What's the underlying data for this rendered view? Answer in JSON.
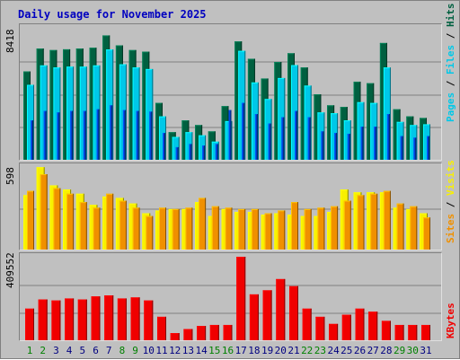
{
  "title": "Daily usage for November 2025",
  "colors": {
    "hits": "#006040",
    "files": "#00c8e8",
    "pages": "#0040c8",
    "visits": "#f8f000",
    "sites": "#f09000",
    "kbytes": "#f00000",
    "weekend_label": "#008000",
    "weekday_label": "#000080"
  },
  "chart_data": [
    {
      "type": "bar",
      "panel": "top",
      "max_label": "8418",
      "right_label": [
        "Pages",
        " / ",
        "Files",
        " / ",
        "Hits"
      ],
      "categories": [
        "1",
        "2",
        "3",
        "4",
        "5",
        "6",
        "7",
        "8",
        "9",
        "10",
        "11",
        "12",
        "13",
        "14",
        "15",
        "16",
        "17",
        "18",
        "19",
        "20",
        "21",
        "22",
        "23",
        "24",
        "25",
        "26",
        "27",
        "28",
        "29",
        "30",
        "31"
      ],
      "ylim": [
        0,
        8418
      ],
      "series": [
        {
          "name": "Hits",
          "values": [
            5600,
            7050,
            6950,
            7000,
            7050,
            7100,
            7880,
            7250,
            6950,
            6850,
            3600,
            1750,
            2500,
            2200,
            1800,
            3400,
            7500,
            6400,
            5150,
            6200,
            6750,
            5850,
            4150,
            3450,
            3350,
            4950,
            4850,
            7400,
            3200,
            2750,
            2650
          ]
        },
        {
          "name": "Files",
          "values": [
            4750,
            5980,
            5850,
            5900,
            5900,
            5980,
            6990,
            6050,
            5850,
            5750,
            2750,
            1450,
            1750,
            1550,
            1150,
            2450,
            6900,
            4900,
            3850,
            5180,
            6000,
            4700,
            3000,
            2950,
            2500,
            3650,
            3600,
            5850,
            2400,
            2200,
            2250
          ]
        },
        {
          "name": "Pages",
          "values": [
            2500,
            3100,
            3000,
            3100,
            3100,
            3200,
            3450,
            3150,
            3100,
            3050,
            1700,
            800,
            1000,
            900,
            1000,
            3150,
            3600,
            2900,
            2300,
            2700,
            3100,
            2700,
            1800,
            1700,
            1650,
            2100,
            2100,
            2900,
            1500,
            1400,
            1500
          ]
        }
      ]
    },
    {
      "type": "bar",
      "panel": "middle",
      "max_label": "598",
      "right_label": [
        "Sites",
        " / ",
        "Visits"
      ],
      "categories": [
        "1",
        "2",
        "3",
        "4",
        "5",
        "6",
        "7",
        "8",
        "9",
        "10",
        "11",
        "12",
        "13",
        "14",
        "15",
        "16",
        "17",
        "18",
        "19",
        "20",
        "21",
        "22",
        "23",
        "24",
        "25",
        "26",
        "27",
        "28",
        "29",
        "30",
        "31"
      ],
      "ylim": [
        0,
        598
      ],
      "series": [
        {
          "name": "Visits",
          "values": [
            390,
            590,
            460,
            430,
            400,
            320,
            380,
            370,
            330,
            260,
            280,
            290,
            290,
            340,
            240,
            290,
            270,
            270,
            250,
            260,
            250,
            240,
            240,
            270,
            430,
            410,
            410,
            410,
            300,
            290,
            260
          ]
        },
        {
          "name": "Sites",
          "values": [
            420,
            540,
            440,
            400,
            340,
            300,
            400,
            350,
            300,
            240,
            300,
            290,
            300,
            370,
            310,
            300,
            290,
            290,
            260,
            280,
            340,
            290,
            300,
            310,
            350,
            390,
            400,
            420,
            330,
            310,
            230
          ]
        }
      ]
    },
    {
      "type": "bar",
      "panel": "bottom",
      "max_label": "409552",
      "right_label": [
        "KBytes"
      ],
      "categories": [
        "1",
        "2",
        "3",
        "4",
        "5",
        "6",
        "7",
        "8",
        "9",
        "10",
        "11",
        "12",
        "13",
        "14",
        "15",
        "16",
        "17",
        "18",
        "19",
        "20",
        "21",
        "22",
        "23",
        "24",
        "25",
        "26",
        "27",
        "28",
        "29",
        "30",
        "31"
      ],
      "ylim": [
        0,
        409552
      ],
      "series": [
        {
          "name": "KBytes",
          "values": [
            155000,
            200000,
            195000,
            205000,
            200000,
            215000,
            220000,
            205000,
            210000,
            195000,
            115000,
            35000,
            55000,
            70000,
            75000,
            75000,
            409552,
            225000,
            245000,
            300000,
            265000,
            155000,
            115000,
            80000,
            125000,
            155000,
            140000,
            95000,
            75000,
            75000,
            75000
          ]
        }
      ]
    }
  ],
  "weekend_days": [
    "1",
    "2",
    "8",
    "9",
    "15",
    "16",
    "22",
    "23",
    "29",
    "30"
  ]
}
